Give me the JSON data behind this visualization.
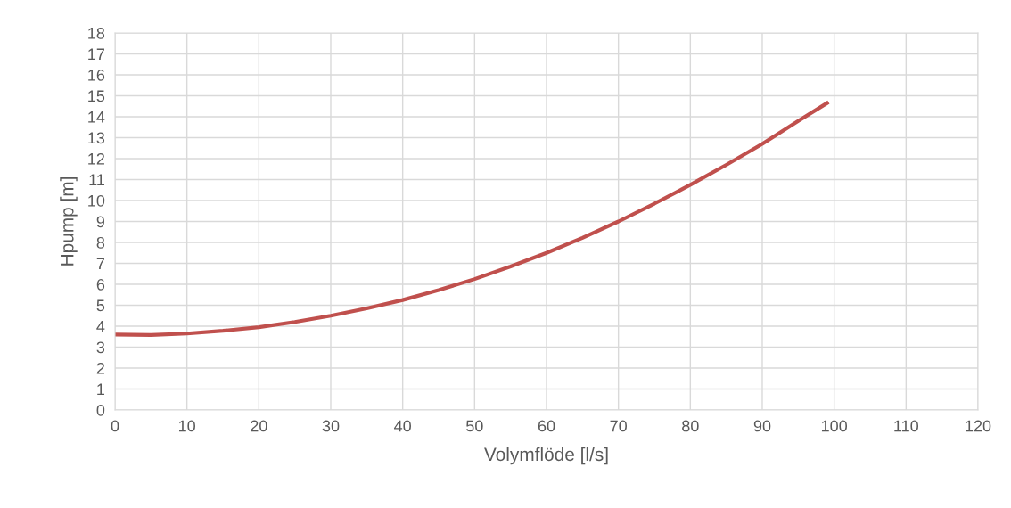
{
  "chart_data": {
    "type": "line",
    "xlabel": "Volymflöde [l/s]",
    "ylabel": "Hpump [m]",
    "x": [
      0,
      5,
      10,
      15,
      20,
      25,
      30,
      35,
      40,
      45,
      50,
      55,
      60,
      65,
      70,
      75,
      80,
      85,
      90,
      95,
      99
    ],
    "series": [
      {
        "color": "#c0504d",
        "values": [
          3.6,
          3.58,
          3.65,
          3.78,
          3.95,
          4.2,
          4.5,
          4.85,
          5.25,
          5.72,
          6.25,
          6.85,
          7.5,
          8.22,
          9.0,
          9.85,
          10.75,
          11.7,
          12.7,
          13.8,
          14.65
        ]
      }
    ],
    "xlim": [
      0,
      120
    ],
    "xticks": [
      0,
      10,
      20,
      30,
      40,
      50,
      60,
      70,
      80,
      90,
      100,
      110,
      120
    ],
    "ylim": [
      0,
      18
    ],
    "yticks": [
      0,
      1,
      2,
      3,
      4,
      5,
      6,
      7,
      8,
      9,
      10,
      11,
      12,
      13,
      14,
      15,
      16,
      17,
      18
    ],
    "grid": true,
    "marker": "none",
    "line_style": "solid"
  }
}
